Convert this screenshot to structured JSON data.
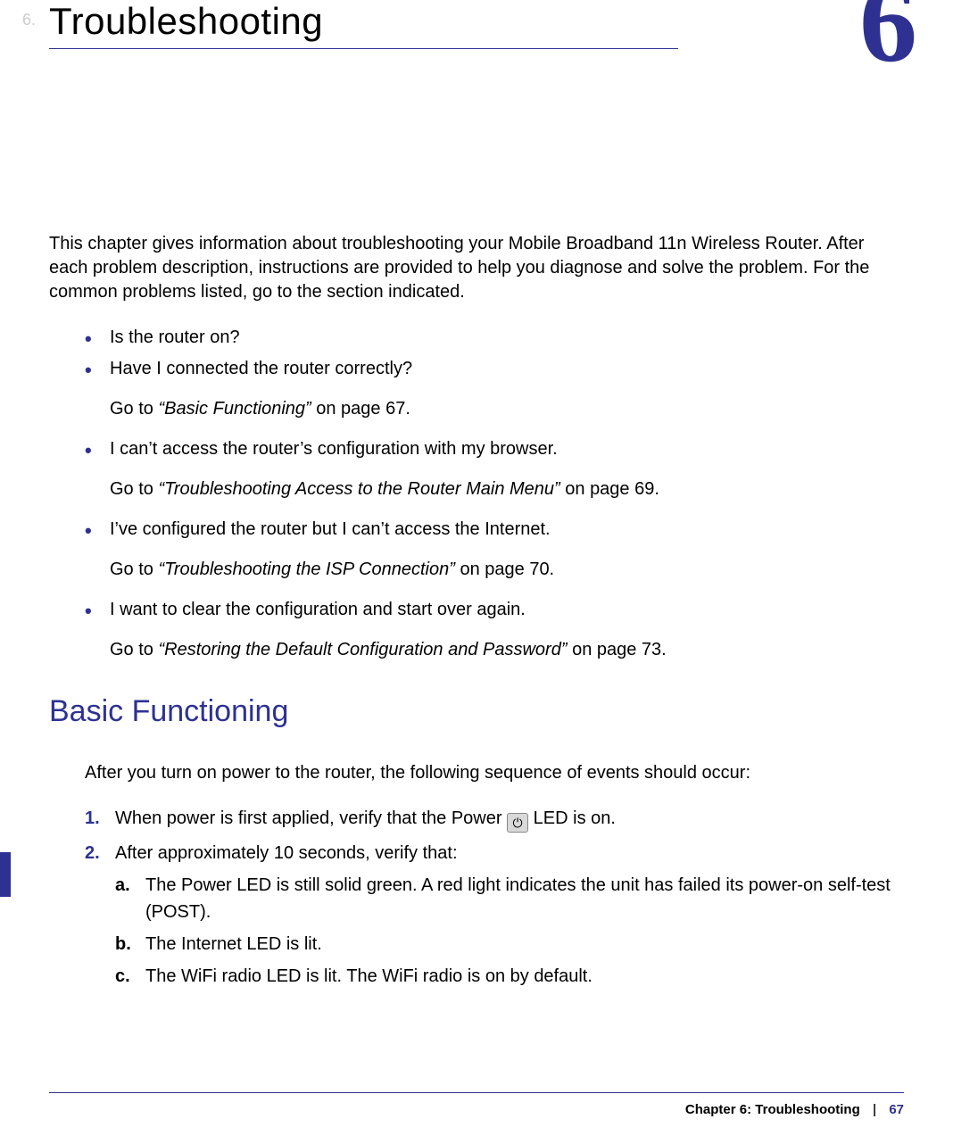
{
  "colors": {
    "accent": "#2e3192",
    "text": "#000000",
    "background": "#ffffff",
    "icon_bg": "#d9d9d9",
    "icon_border": "#888888"
  },
  "typography": {
    "chapter_title_fontsize": 42,
    "chapter_number_fontsize": 130,
    "section_heading_fontsize": 34,
    "body_fontsize": 20,
    "footer_fontsize": 15
  },
  "chapter": {
    "prefix": "6.",
    "title": "Troubleshooting",
    "number": "6"
  },
  "intro": "This chapter gives information about troubleshooting your Mobile Broadband 11n Wireless Router. After each problem description, instructions are provided to help you diagnose and solve the problem. For the common problems listed, go to the section indicated.",
  "bullets": [
    {
      "text": "Is the router on?"
    },
    {
      "text": "Have I connected the router correctly?",
      "goto_prefix": "Go to ",
      "goto_link": "“Basic Functioning”",
      "goto_suffix": " on page 67."
    },
    {
      "text": "I can’t access the router’s configuration with my browser.",
      "goto_prefix": "Go to ",
      "goto_link": "“Troubleshooting Access to the Router Main Menu”",
      "goto_suffix": " on page 69."
    },
    {
      "text": "I’ve configured the router but I can’t access the Internet.",
      "goto_prefix": "Go to ",
      "goto_link": "“Troubleshooting the ISP Connection”",
      "goto_suffix": " on page 70."
    },
    {
      "text": "I want to clear the configuration and start over again.",
      "goto_prefix": "Go to ",
      "goto_link": "“Restoring the Default Configuration and Password”",
      "goto_suffix": " on page 73."
    }
  ],
  "section": {
    "heading": "Basic Functioning",
    "intro": "After you turn on power to the router, the following sequence of events should occur:",
    "steps": [
      {
        "num": "1.",
        "text_before": "When power is first applied, verify that the Power ",
        "text_after": " LED is on.",
        "has_icon": true
      },
      {
        "num": "2.",
        "text_before": "After approximately 10 seconds, verify that:",
        "substeps": [
          {
            "letter": "a.",
            "text": "The Power LED is still solid green. A red light indicates the unit has failed its power-on self-test (POST)."
          },
          {
            "letter": "b.",
            "text": "The Internet LED is lit."
          },
          {
            "letter": "c.",
            "text": "The WiFi radio LED is lit. The WiFi radio is on by default."
          }
        ]
      }
    ]
  },
  "footer": {
    "label": "Chapter 6:  Troubleshooting",
    "separator": "|",
    "page": "67"
  },
  "icon": {
    "power_glyph": "⏻"
  }
}
